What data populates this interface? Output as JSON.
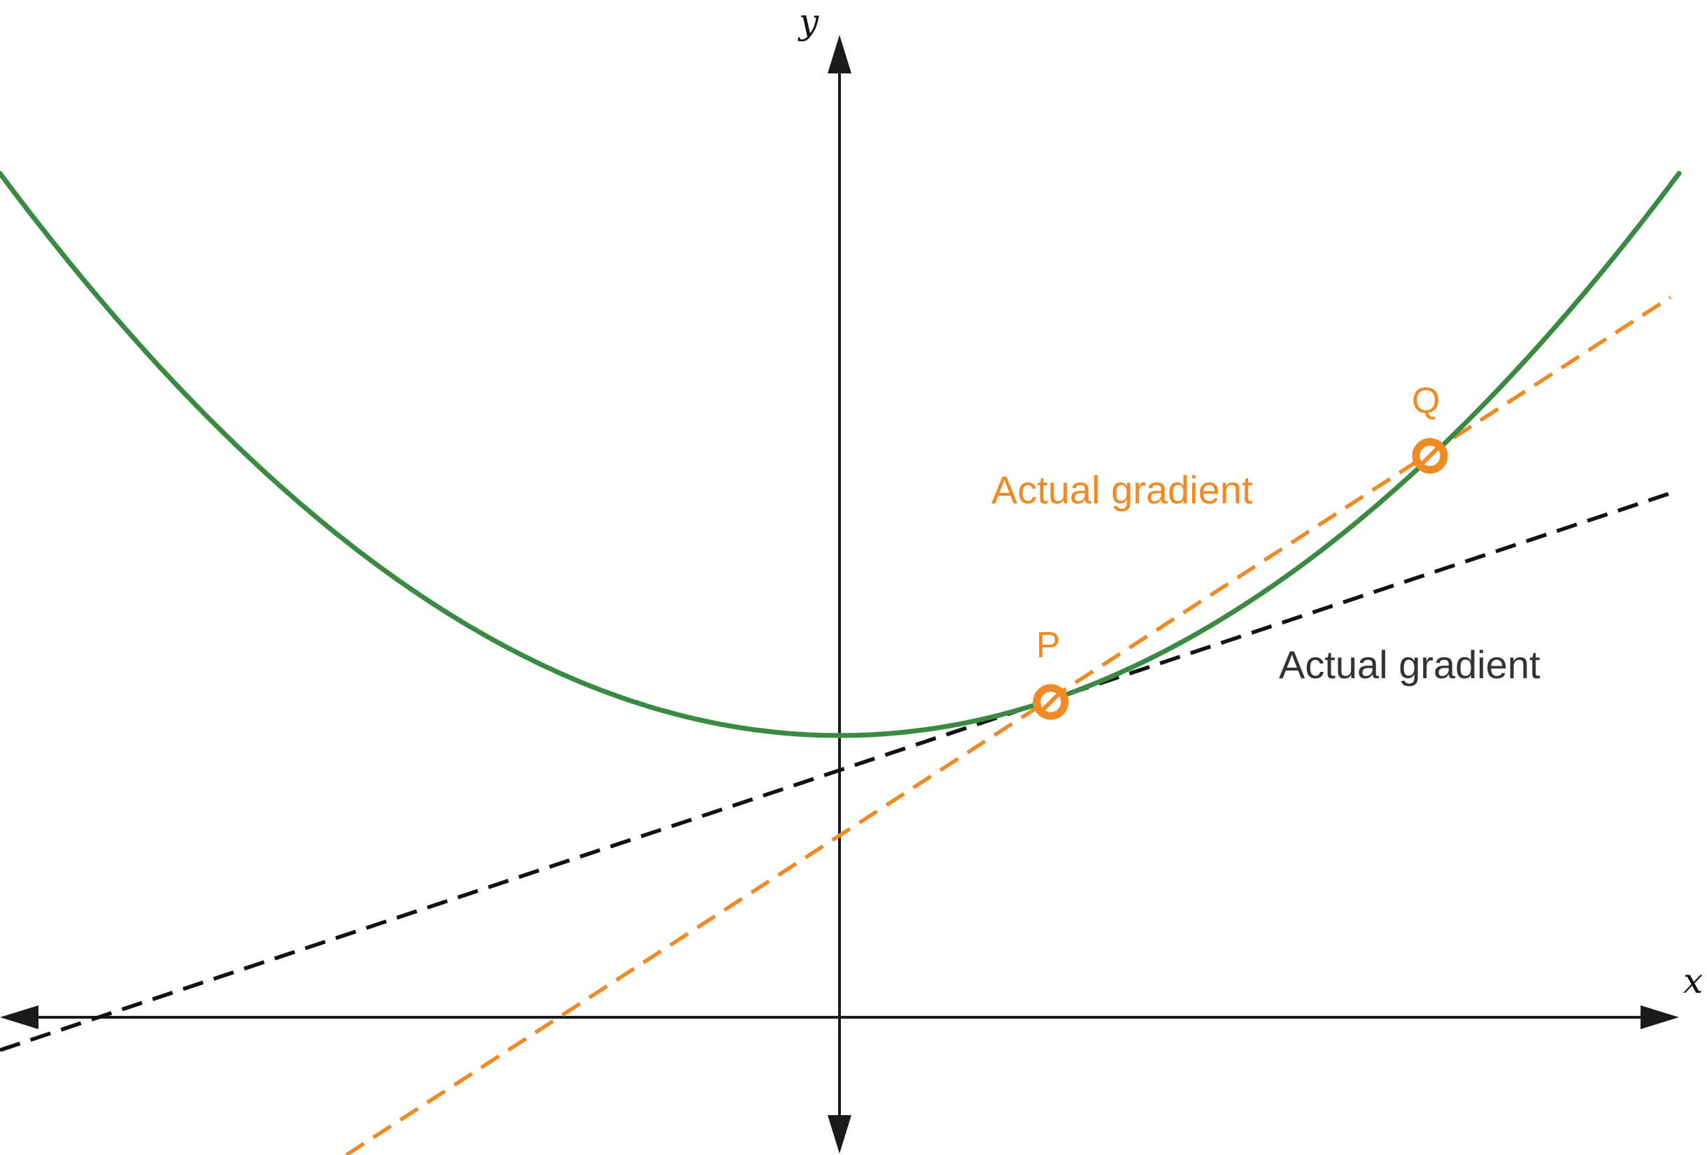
{
  "axes": {
    "x_label": "x",
    "y_label": "y"
  },
  "points": {
    "P": {
      "label": "P"
    },
    "Q": {
      "label": "Q"
    }
  },
  "labels": {
    "secant_label": "Actual gradient",
    "tangent_label": "Actual gradient"
  },
  "colors": {
    "curve": "#3a8a42",
    "secant": "#f08a24",
    "tangent": "#111111",
    "axes": "#1a1a1a",
    "point_label": "#f08a24",
    "tangent_label": "#333333"
  },
  "chart_data": {
    "type": "diagram",
    "curve": "parabola with minimum on the y-axis, above the x-axis",
    "lines": [
      {
        "name": "secant",
        "style": "dashed",
        "through": [
          "P",
          "Q"
        ]
      },
      {
        "name": "tangent",
        "style": "dashed",
        "through": [
          "P"
        ]
      }
    ]
  }
}
